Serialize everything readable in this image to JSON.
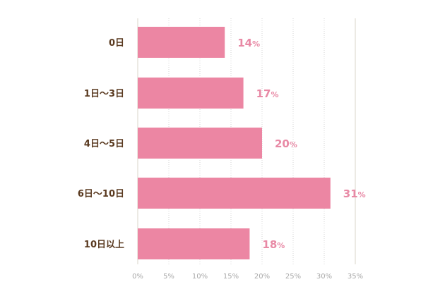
{
  "chart_data": {
    "type": "bar",
    "orientation": "horizontal",
    "categories": [
      "0日",
      "1日〜3日",
      "4日〜5日",
      "6日〜10日",
      "10日以上"
    ],
    "values": [
      14,
      17,
      20,
      31,
      18
    ],
    "value_labels": [
      "14",
      "17",
      "20",
      "31",
      "18"
    ],
    "value_unit": "%",
    "xlim": [
      0,
      35
    ],
    "x_ticks": [
      0,
      5,
      10,
      15,
      20,
      25,
      30,
      35
    ],
    "x_tick_labels": [
      "0%",
      "5%",
      "10%",
      "15%",
      "20%",
      "25%",
      "30%",
      "35%"
    ],
    "grid": "vertical-dotted",
    "colors": {
      "bar": "#EC86A3",
      "value_label": "#E889A5",
      "category_label": "#5A3A20",
      "tick_label": "#A8A8A8",
      "grid": "#D6D6D6",
      "axis_line": "#DAD6C8"
    }
  }
}
